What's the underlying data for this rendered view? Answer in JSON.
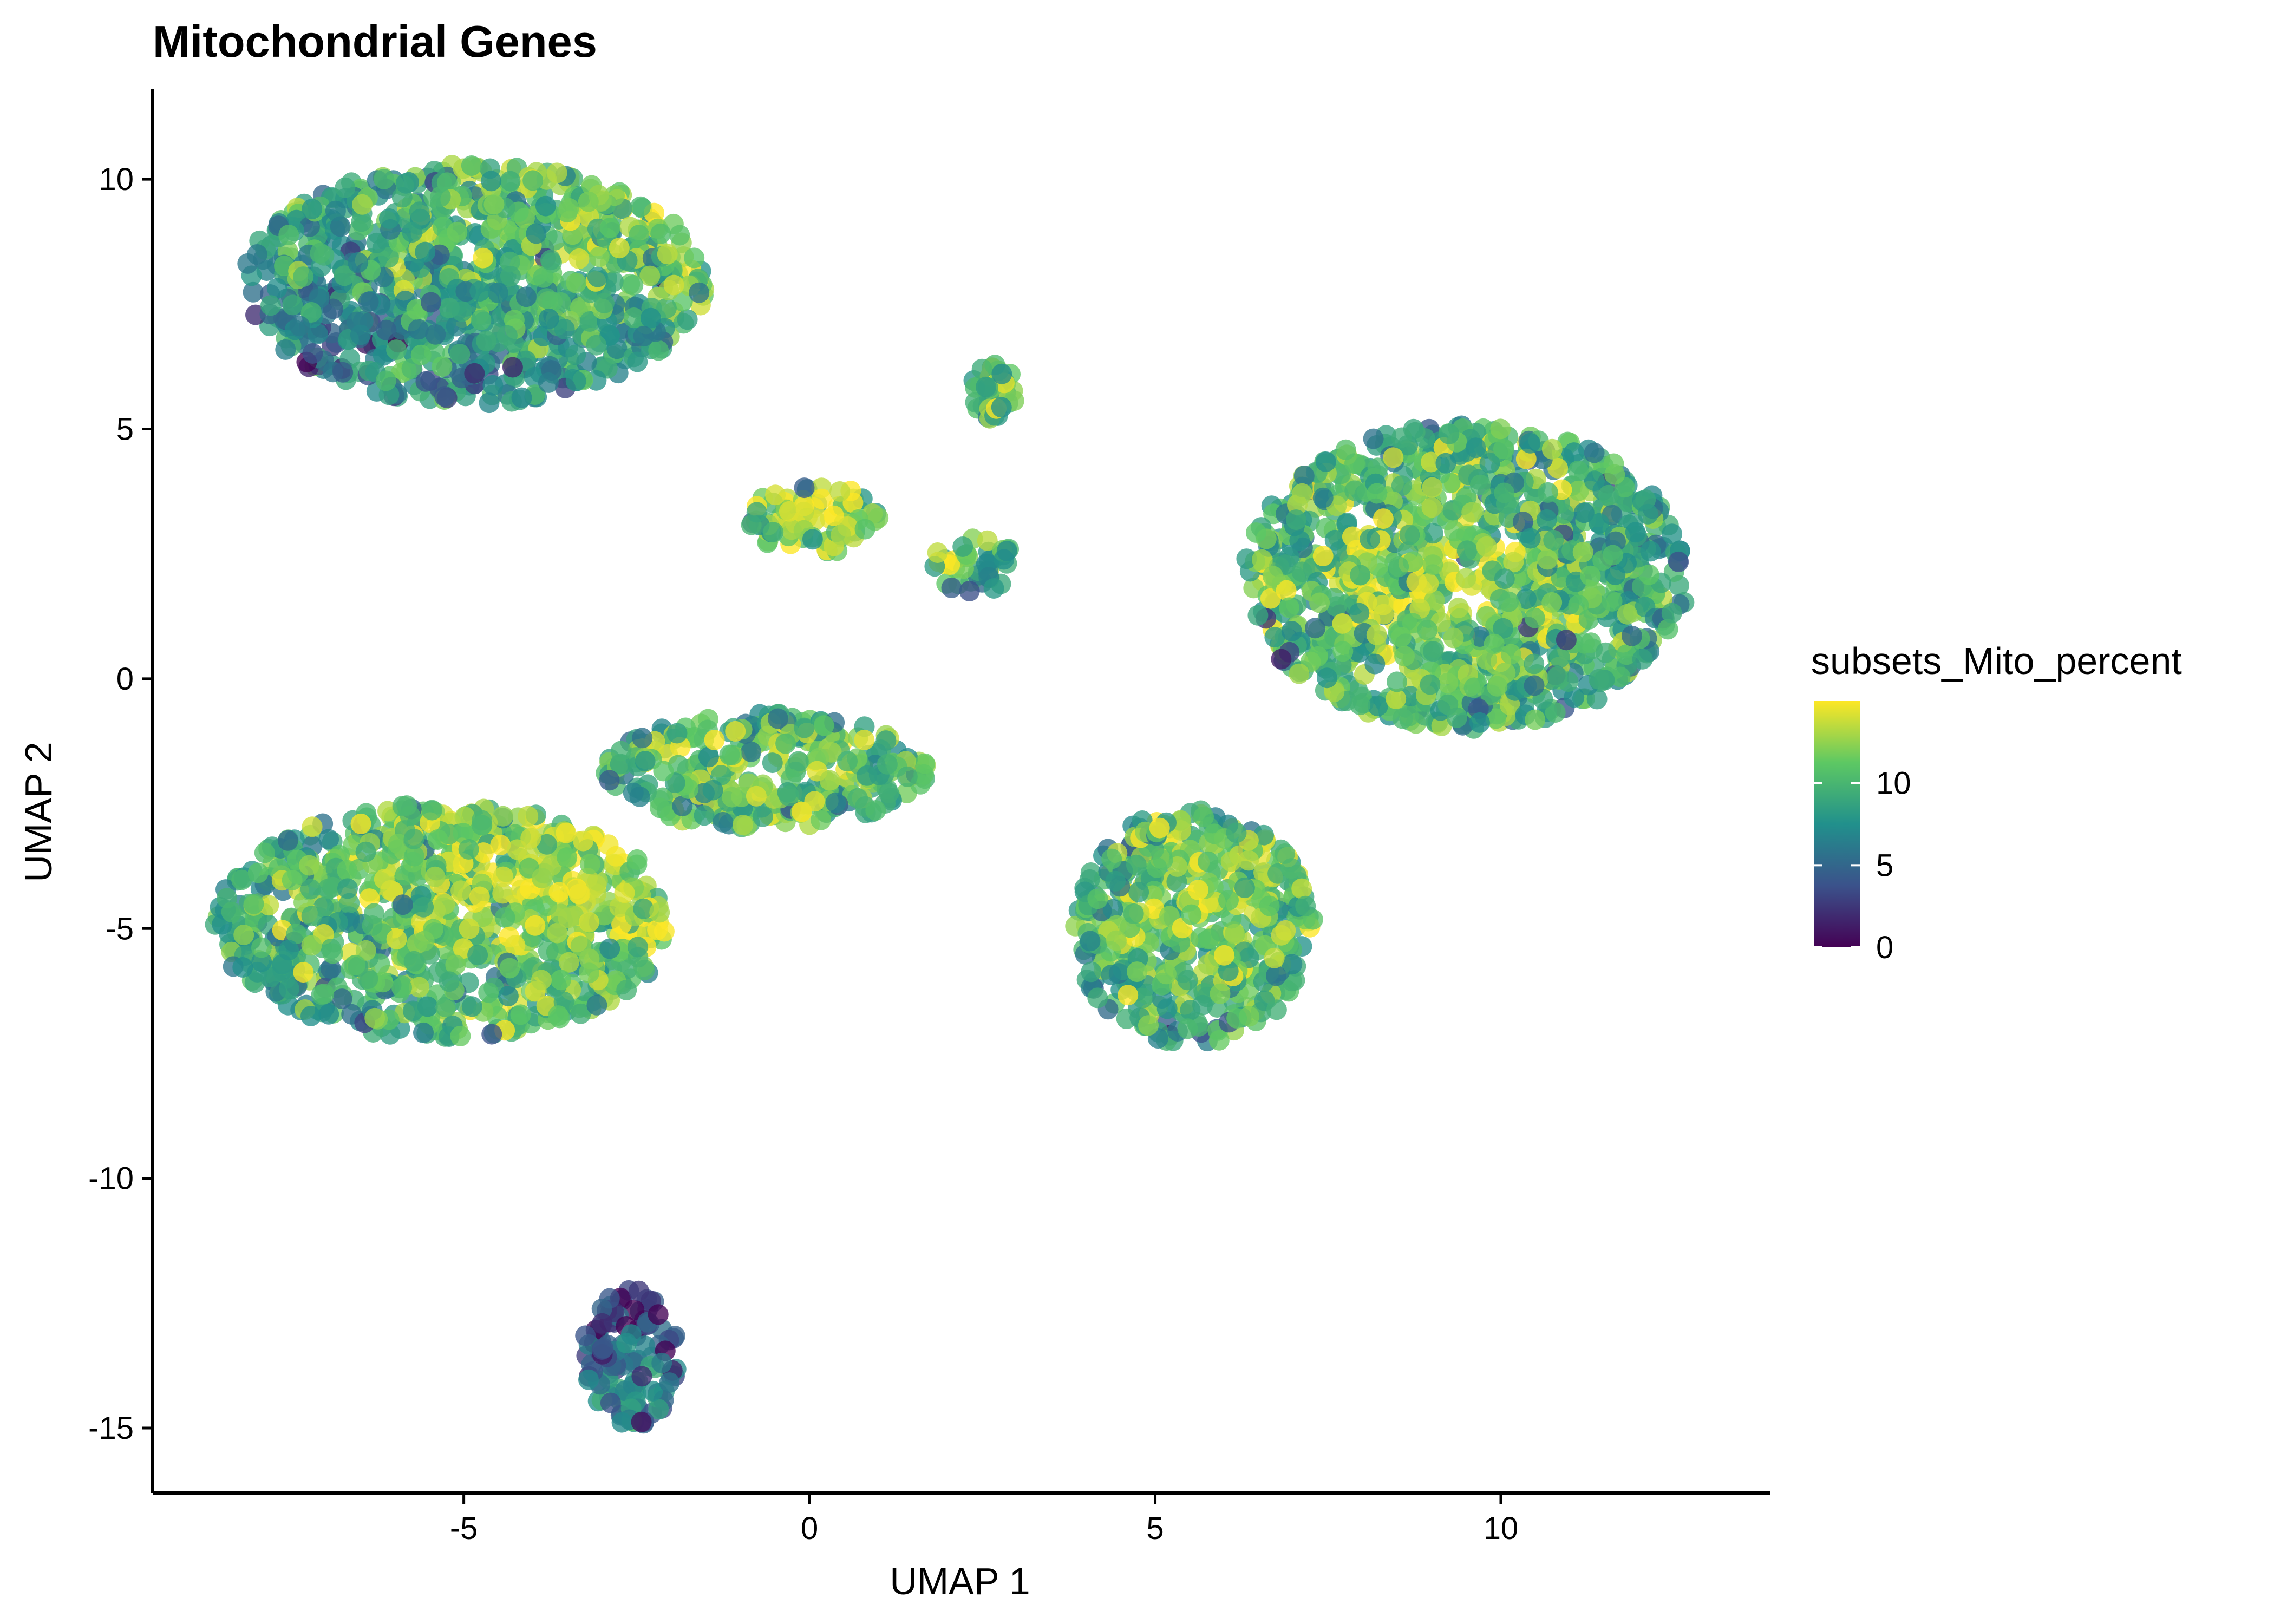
{
  "chart_data": {
    "type": "scatter",
    "title": "Mitochondrial Genes",
    "xlabel": "UMAP 1",
    "ylabel": "UMAP 2",
    "xlim": [
      -9.5,
      13.9
    ],
    "ylim": [
      -16.3,
      11.8
    ],
    "x_ticks": [
      -5,
      0,
      5,
      10
    ],
    "y_ticks": [
      10,
      5,
      0,
      -5,
      -10,
      -15
    ],
    "x_tick_labels": [
      "-5",
      "0",
      "5",
      "10"
    ],
    "y_tick_labels": [
      "10",
      "5",
      "0",
      "-5",
      "-10",
      "-15"
    ],
    "grid": false,
    "legend": {
      "title": "subsets_Mito_percent",
      "placement": "right",
      "range": [
        0,
        15
      ],
      "breaks": [
        0,
        5,
        10
      ],
      "labels": [
        "0",
        "5",
        "10"
      ],
      "colors": [
        "#440154",
        "#3B528B",
        "#21908C",
        "#5DC863",
        "#FDE725"
      ]
    },
    "clusters": [
      {
        "name": "top-left",
        "x": [
          -8.2,
          -1.5
        ],
        "y": [
          5.5,
          10.3
        ],
        "mito_mean": 9,
        "hot_x": -2.3,
        "hot_y": 9.9
      },
      {
        "name": "left-bottom",
        "x": [
          -8.6,
          -2.0
        ],
        "y": [
          -7.2,
          -2.5
        ],
        "mito_mean": 10,
        "hot_x": -3.6,
        "hot_y": -4.0
      },
      {
        "name": "left-bridge",
        "x": [
          -3.0,
          1.7
        ],
        "y": [
          -3.0,
          -0.7
        ],
        "mito_mean": 9,
        "hot_x": -0.5,
        "hot_y": -1.7
      },
      {
        "name": "right-upper",
        "x": [
          6.3,
          12.7
        ],
        "y": [
          -1.0,
          5.1
        ],
        "mito_mean": 8.5,
        "hot_x": 9.0,
        "hot_y": 1.8
      },
      {
        "name": "center-right",
        "x": [
          3.8,
          7.3
        ],
        "y": [
          -7.3,
          -2.6
        ],
        "mito_mean": 9,
        "hot_x": 5.8,
        "hot_y": -4.4
      },
      {
        "name": "small-center",
        "x": [
          -0.9,
          1.0
        ],
        "y": [
          2.5,
          3.9
        ],
        "mito_mean": 10,
        "hot_x": 0.2,
        "hot_y": 3.3
      },
      {
        "name": "small-top",
        "x": [
          2.3,
          3.0
        ],
        "y": [
          5.2,
          6.3
        ],
        "mito_mean": 9,
        "hot_x": 2.6,
        "hot_y": 6.1
      },
      {
        "name": "streak",
        "x": [
          1.8,
          3.0
        ],
        "y": [
          1.7,
          2.9
        ],
        "mito_mean": 10,
        "hot_x": 2.0,
        "hot_y": 2.7
      },
      {
        "name": "bottom-triangle",
        "x": [
          -3.3,
          -1.9
        ],
        "y": [
          -15.0,
          -12.2
        ],
        "mito_mean": 3.5,
        "hot_x": -2.5,
        "hot_y": -14.4
      }
    ]
  }
}
